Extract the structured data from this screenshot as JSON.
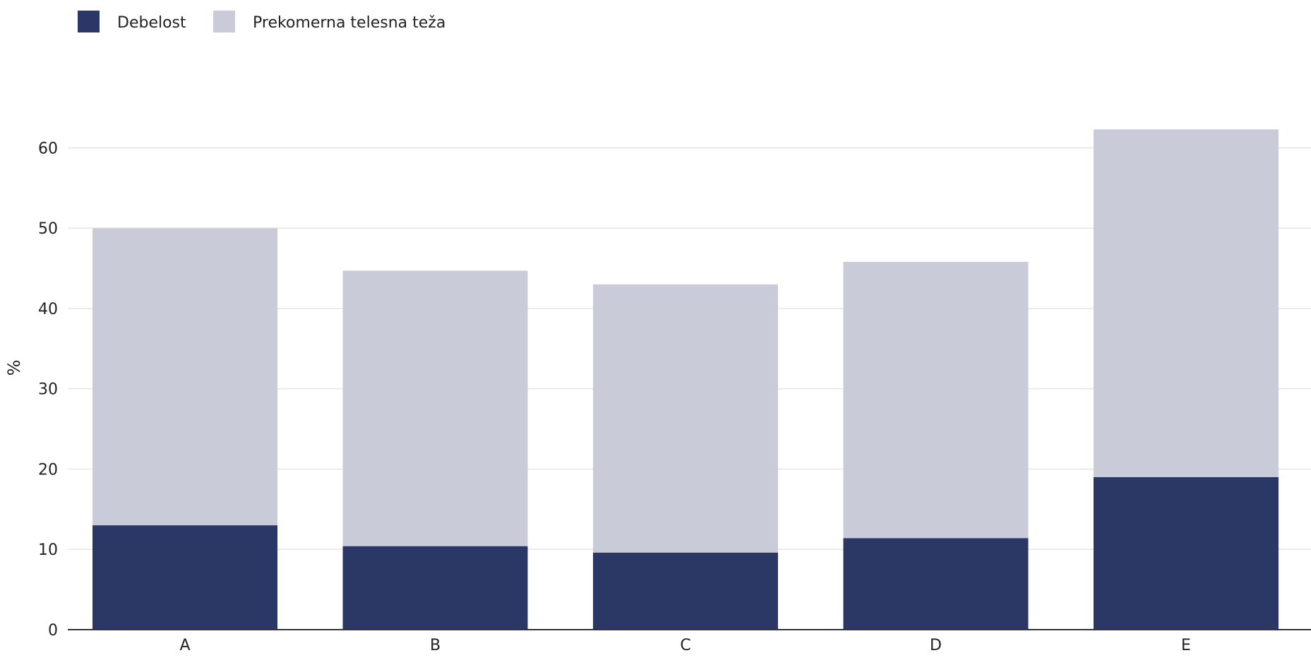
{
  "chart_data": {
    "type": "bar",
    "stacked": true,
    "categories": [
      "A",
      "B",
      "C",
      "D",
      "E"
    ],
    "series": [
      {
        "name": "Debelost",
        "color": "#2b3764",
        "values": [
          13.0,
          10.4,
          9.6,
          11.4,
          19.0
        ]
      },
      {
        "name": "Prekomerna telesna teža",
        "color": "#c9ccd8",
        "values": [
          37.0,
          34.3,
          33.4,
          34.4,
          43.3
        ]
      }
    ],
    "ylabel": "%",
    "xlabel": "",
    "title": "",
    "ylim": [
      0,
      70
    ],
    "yticks": [
      0,
      10,
      20,
      30,
      40,
      50,
      60
    ],
    "grid": true,
    "legend_position": "top-left"
  }
}
